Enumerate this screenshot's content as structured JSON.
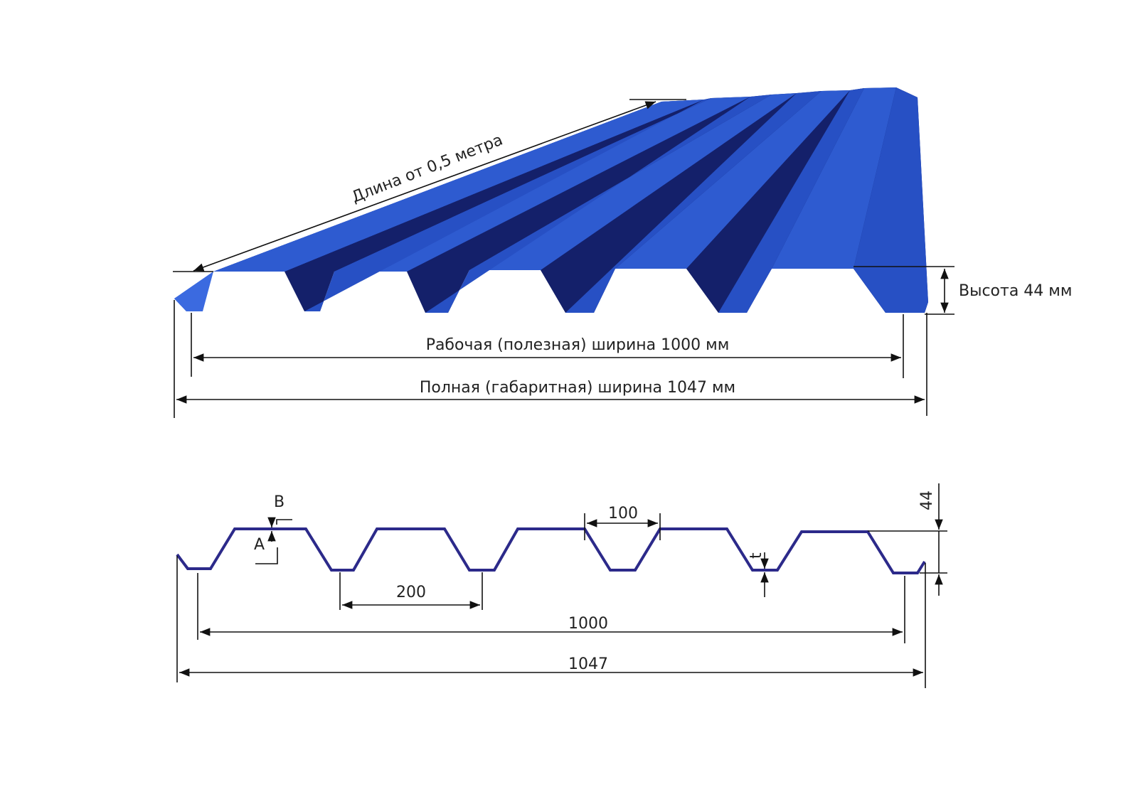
{
  "top_view": {
    "length_label": "Длина от 0,5 метра",
    "height_label": "Высота 44 мм",
    "working_width_label": "Рабочая (полезная) ширина 1000 мм",
    "full_width_label": "Полная (габаритная) ширина 1047 мм",
    "sheet_color": "#2e5bd0",
    "shadow_color": "#14206a"
  },
  "profile_view": {
    "label_b": "B",
    "label_a": "A",
    "label_t": "t",
    "dim_100": "100",
    "dim_200": "200",
    "dim_1000": "1000",
    "dim_1047": "1047",
    "dim_44": "44",
    "profile_color": "#2c2a8a"
  }
}
